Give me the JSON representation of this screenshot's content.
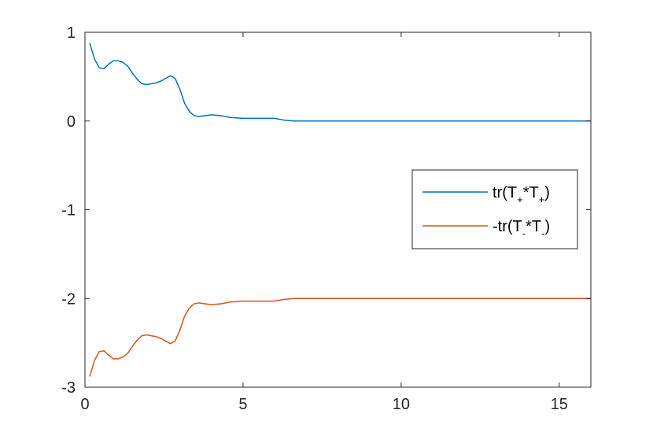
{
  "chart_data": {
    "type": "line",
    "title": "",
    "xlabel": "",
    "ylabel": "",
    "xlim": [
      0,
      16
    ],
    "ylim": [
      -3,
      1
    ],
    "xticks": [
      0,
      5,
      10,
      15
    ],
    "yticks": [
      -3,
      -2,
      -1,
      0,
      1
    ],
    "xtick_labels": [
      "0",
      "5",
      "10",
      "15"
    ],
    "ytick_labels": [
      "-3",
      "-2",
      "-1",
      "0",
      "1"
    ],
    "grid": false,
    "legend_position": "center-right",
    "series": [
      {
        "name": "tr(T+*T+)",
        "legend": {
          "pre": "tr(T",
          "sub1": "+",
          "mid": "*T",
          "sub2": "+",
          "post": ")"
        },
        "color": "#0072BD",
        "x": [
          0.15,
          0.3,
          0.45,
          0.6,
          0.75,
          0.9,
          1.05,
          1.2,
          1.35,
          1.5,
          1.65,
          1.8,
          1.95,
          2.1,
          2.25,
          2.4,
          2.55,
          2.7,
          2.85,
          3.0,
          3.15,
          3.3,
          3.45,
          3.6,
          3.8,
          4.0,
          4.3,
          4.6,
          5.0,
          5.5,
          6.0,
          6.3,
          6.6,
          7.0,
          8.0,
          10.0,
          12.0,
          14.0,
          16.0
        ],
        "y": [
          0.88,
          0.7,
          0.6,
          0.59,
          0.64,
          0.68,
          0.68,
          0.66,
          0.62,
          0.54,
          0.47,
          0.42,
          0.41,
          0.42,
          0.43,
          0.45,
          0.48,
          0.51,
          0.48,
          0.36,
          0.2,
          0.11,
          0.06,
          0.05,
          0.06,
          0.07,
          0.06,
          0.04,
          0.03,
          0.03,
          0.03,
          0.01,
          0.0,
          0.0,
          0.0,
          0.0,
          0.0,
          0.0,
          0.0
        ]
      },
      {
        "name": "-tr(T-*T-)",
        "legend": {
          "pre": "-tr(T",
          "sub1": "-",
          "mid": "*T",
          "sub2": "-",
          "post": ")"
        },
        "color": "#D95319",
        "x": [
          0.15,
          0.3,
          0.45,
          0.6,
          0.75,
          0.9,
          1.05,
          1.2,
          1.35,
          1.5,
          1.65,
          1.8,
          1.95,
          2.1,
          2.25,
          2.4,
          2.55,
          2.7,
          2.85,
          3.0,
          3.15,
          3.3,
          3.45,
          3.6,
          3.8,
          4.0,
          4.3,
          4.6,
          5.0,
          5.5,
          6.0,
          6.3,
          6.6,
          7.0,
          8.0,
          10.0,
          12.0,
          14.0,
          16.0
        ],
        "y": [
          -2.88,
          -2.7,
          -2.6,
          -2.59,
          -2.64,
          -2.68,
          -2.68,
          -2.66,
          -2.62,
          -2.54,
          -2.47,
          -2.42,
          -2.41,
          -2.42,
          -2.43,
          -2.45,
          -2.48,
          -2.51,
          -2.48,
          -2.36,
          -2.2,
          -2.11,
          -2.06,
          -2.05,
          -2.06,
          -2.07,
          -2.06,
          -2.04,
          -2.03,
          -2.03,
          -2.03,
          -2.01,
          -2.0,
          -2.0,
          -2.0,
          -2.0,
          -2.0,
          -2.0,
          -2.0
        ]
      }
    ]
  }
}
